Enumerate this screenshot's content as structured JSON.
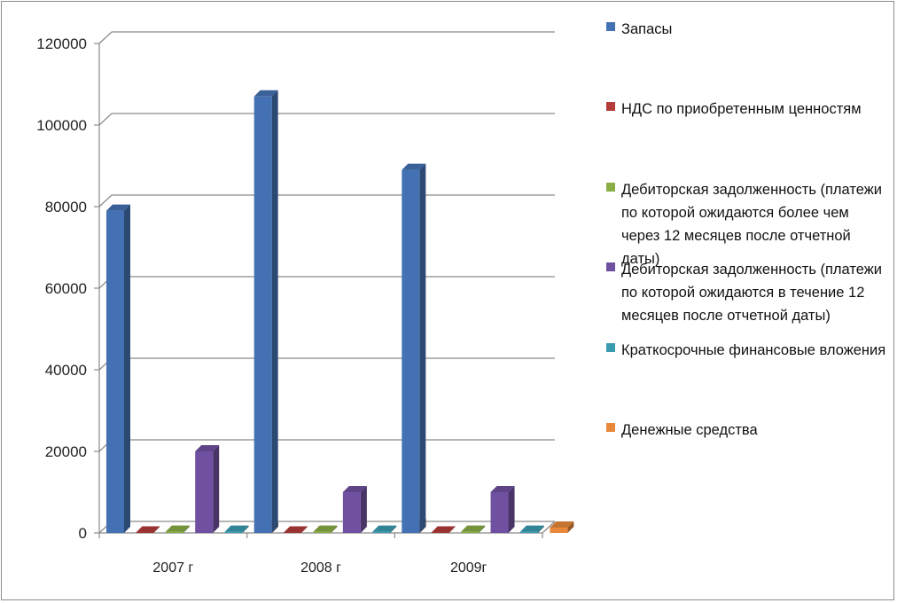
{
  "chart_data": {
    "type": "bar",
    "categories": [
      "2007 г",
      "2008 г",
      "2009г"
    ],
    "series": [
      {
        "name": "Запасы",
        "values": [
          79000,
          107000,
          89000
        ],
        "color": "#4471b3"
      },
      {
        "name": "НДС по приобретенным ценностям",
        "values": [
          100,
          100,
          100
        ],
        "color": "#b33c3a"
      },
      {
        "name": "Дебиторская задолженность (платежи по которой ожидаются более чем через 12 месяцев после отчетной даты)",
        "values": [
          300,
          300,
          300
        ],
        "color": "#8aad45"
      },
      {
        "name": "Дебиторская задолженность (платежи по которой ожидаются в течение 12 месяцев после отчетной даты)",
        "values": [
          20000,
          10000,
          10000
        ],
        "color": "#7050a0"
      },
      {
        "name": "Краткосрочные финансовые вложения",
        "values": [
          300,
          300,
          300
        ],
        "color": "#3a9bb0"
      },
      {
        "name": "Денежные средства",
        "values": [
          1200,
          2000,
          1300
        ],
        "color": "#e8883a"
      }
    ],
    "y_ticks": [
      "0",
      "20000",
      "40000",
      "60000",
      "80000",
      "100000",
      "120000"
    ],
    "ylim": [
      0,
      120000
    ],
    "grid": true,
    "legend_position": "right"
  }
}
